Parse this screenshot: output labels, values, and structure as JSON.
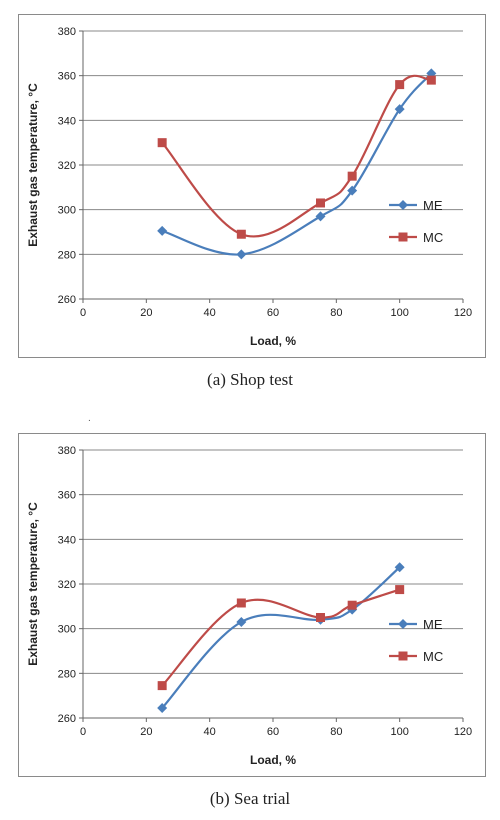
{
  "captions": {
    "a": "(a)  Shop  test",
    "b": "(b)  Sea  trial"
  },
  "stray_mark": ".",
  "chart_data": [
    {
      "type": "line",
      "xlabel": "Load, %",
      "ylabel": "Exhaust gas temperature, °C",
      "xlim": [
        0,
        120
      ],
      "ylim": [
        260,
        380
      ],
      "xticks": [
        0,
        20,
        40,
        60,
        80,
        100,
        120
      ],
      "yticks": [
        260,
        280,
        300,
        320,
        340,
        360,
        380
      ],
      "grid": "horizontal",
      "legend_position": "right",
      "series": [
        {
          "name": "ME",
          "color": "#4a7ebb",
          "marker": "diamond",
          "x": [
            25,
            50,
            75,
            85,
            100,
            110
          ],
          "y": [
            290.5,
            280,
            297,
            308.5,
            345,
            361
          ]
        },
        {
          "name": "MC",
          "color": "#be4b48",
          "marker": "square",
          "x": [
            25,
            50,
            75,
            85,
            100,
            110
          ],
          "y": [
            330,
            289,
            303,
            315,
            356,
            358
          ]
        }
      ]
    },
    {
      "type": "line",
      "xlabel": "Load, %",
      "ylabel": "Exhaust gas temperature, °C",
      "xlim": [
        0,
        120
      ],
      "ylim": [
        260,
        380
      ],
      "xticks": [
        0,
        20,
        40,
        60,
        80,
        100,
        120
      ],
      "yticks": [
        260,
        280,
        300,
        320,
        340,
        360,
        380
      ],
      "grid": "horizontal",
      "legend_position": "right",
      "series": [
        {
          "name": "ME",
          "color": "#4a7ebb",
          "marker": "diamond",
          "x": [
            25,
            50,
            75,
            85,
            100
          ],
          "y": [
            264.5,
            303,
            304,
            308.5,
            327.5
          ]
        },
        {
          "name": "MC",
          "color": "#be4b48",
          "marker": "square",
          "x": [
            25,
            50,
            75,
            85,
            100
          ],
          "y": [
            274.5,
            311.5,
            305,
            310.5,
            317.5
          ]
        }
      ]
    }
  ]
}
